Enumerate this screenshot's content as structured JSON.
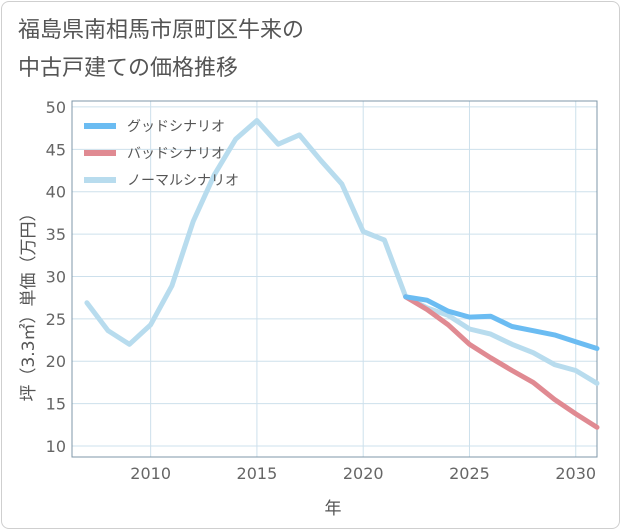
{
  "title": {
    "line1": "福島県南相馬市原町区牛来の",
    "line2": "中古戸建ての価格推移"
  },
  "colors": {
    "good": "#6bbcf2",
    "bad": "#e08a92",
    "normal": "#b8dcee",
    "grid": "#cde0ec",
    "axis_text": "#666666"
  },
  "chart_data": {
    "type": "line",
    "xlabel": "年",
    "ylabel": "坪（3.3㎡）単価（万円）",
    "xlim": [
      2006.3,
      2031
    ],
    "ylim": [
      8.7,
      50.7
    ],
    "xticks": [
      2010,
      2015,
      2020,
      2025,
      2030
    ],
    "yticks": [
      10,
      15,
      20,
      25,
      30,
      35,
      40,
      45,
      50
    ],
    "grid": true,
    "legend_position": "top-left",
    "series": [
      {
        "key": "good",
        "name": "グッドシナリオ",
        "x": [
          2022,
          2023,
          2024,
          2025,
          2026,
          2027,
          2028,
          2029,
          2030,
          2031
        ],
        "values": [
          27.6,
          27.2,
          25.9,
          25.2,
          25.3,
          24.1,
          23.6,
          23.1,
          22.3,
          21.5
        ]
      },
      {
        "key": "bad",
        "name": "バッドシナリオ",
        "x": [
          2022,
          2023,
          2024,
          2025,
          2026,
          2027,
          2028,
          2029,
          2030,
          2031
        ],
        "values": [
          27.6,
          26.1,
          24.3,
          22.0,
          20.4,
          18.9,
          17.5,
          15.5,
          13.8,
          12.2
        ]
      },
      {
        "key": "normal",
        "name": "ノーマルシナリオ",
        "x": [
          2007,
          2008,
          2009,
          2010,
          2011,
          2012,
          2013,
          2014,
          2015,
          2016,
          2017,
          2018,
          2019,
          2020,
          2021,
          2022,
          2023,
          2024,
          2025,
          2026,
          2027,
          2028,
          2029,
          2030,
          2031
        ],
        "values": [
          26.9,
          23.6,
          22.0,
          24.3,
          28.9,
          36.5,
          42.0,
          46.2,
          48.4,
          45.6,
          46.7,
          43.7,
          40.9,
          35.3,
          34.3,
          27.6,
          26.3,
          25.4,
          23.8,
          23.2,
          22.0,
          21.0,
          19.6,
          18.9,
          17.4
        ]
      }
    ]
  }
}
